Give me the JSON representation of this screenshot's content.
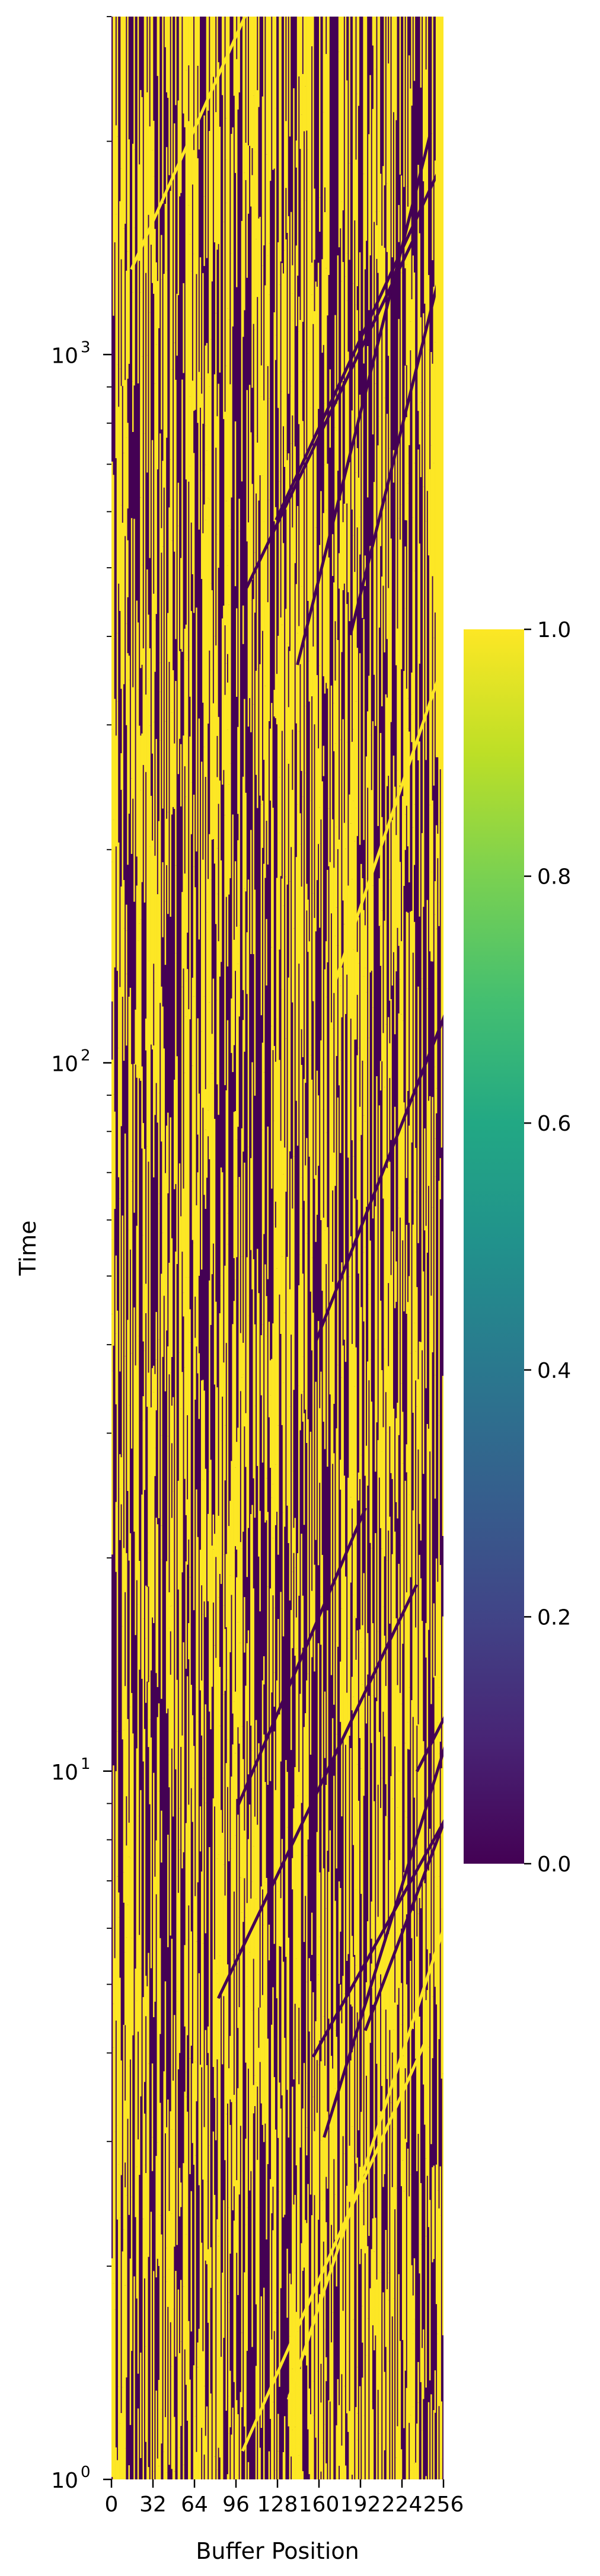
{
  "chart_data": {
    "type": "heatmap",
    "title": "",
    "xlabel": "Buffer Position",
    "ylabel": "Time",
    "x_range": [
      0,
      256
    ],
    "x_ticks": [
      "0",
      "32",
      "64",
      "96",
      "128",
      "160",
      "192",
      "224",
      "256"
    ],
    "y_scale": "log",
    "y_range": [
      1,
      3000
    ],
    "y_ticks": [
      {
        "value": 1,
        "base": "10",
        "exp": "0"
      },
      {
        "value": 10,
        "base": "10",
        "exp": "1"
      },
      {
        "value": 100,
        "base": "10",
        "exp": "2"
      },
      {
        "value": 1000,
        "base": "10",
        "exp": "3"
      }
    ],
    "colormap": "viridis",
    "colors": [
      "#440154",
      "#fde725"
    ],
    "value_range": [
      0,
      1
    ],
    "colorbar_ticks": [
      "0.0",
      "0.2",
      "0.4",
      "0.6",
      "0.8",
      "1.0"
    ],
    "features": [
      {
        "description": "bright right-edge block",
        "x_from": 250,
        "x_to": 256,
        "time_from": 270,
        "time_to": 3000,
        "value": 1
      }
    ],
    "legend": "colorbar right",
    "grid": false
  }
}
